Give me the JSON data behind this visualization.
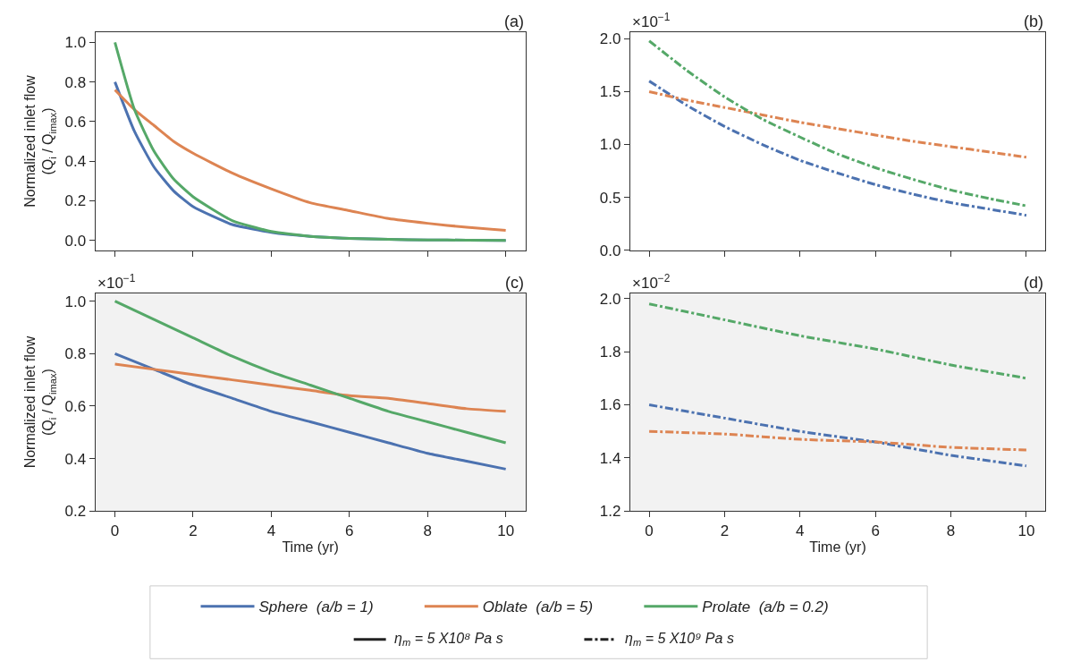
{
  "chart_data": [
    {
      "type": "line",
      "title": "(a)",
      "ylabel": "Normalized inlet flow\n(Q$_{i}$ / Q$_{imax}$)",
      "x": [
        0,
        0.5,
        1,
        1.5,
        2,
        3,
        4,
        5,
        6,
        7,
        8,
        9,
        10
      ],
      "xlim": [
        -0.5,
        10.5
      ],
      "xticks": [
        0,
        2,
        4,
        6,
        8,
        10
      ],
      "ylim": [
        -0.05,
        1.05
      ],
      "yticks": [
        {
          "value": 0,
          "label": "0.0"
        },
        0.2,
        0.4,
        0.6,
        0.8,
        {
          "value": 1,
          "label": "1.0"
        }
      ],
      "tick_labels": "y",
      "grid": false,
      "marker": "none",
      "line_style": "solid",
      "legend": "bottom",
      "annotations": [
        "η$_{m}$ = 5 X10⁸ Pa s",
        "η$_{m}$ = 5 X10⁹ Pa s"
      ],
      "series": [
        {
          "name": "Sphere  (a/b = 1)",
          "color": "#4c72b0",
          "values": [
            0.8,
            0.55,
            0.37,
            0.25,
            0.17,
            0.08,
            0.04,
            0.02,
            0.01,
            0.005,
            0.002,
            0.001,
            0.0
          ]
        },
        {
          "name": "Oblate  (a/b = 5)",
          "color": "#dd8452",
          "values": [
            0.76,
            0.66,
            0.58,
            0.5,
            0.44,
            0.34,
            0.26,
            0.19,
            0.15,
            0.11,
            0.086,
            0.066,
            0.05
          ]
        },
        {
          "name": "Prolate  (a/b = 0.2)",
          "color": "#55a868",
          "values": [
            1.0,
            0.66,
            0.45,
            0.31,
            0.22,
            0.1,
            0.045,
            0.02,
            0.01,
            0.005,
            0.002,
            0.001,
            0.0
          ]
        }
      ]
    },
    {
      "type": "line",
      "title": "(b)",
      "x": [
        0,
        1,
        2,
        3,
        4,
        5,
        6,
        7,
        8,
        9,
        10
      ],
      "xlim": [
        -0.5,
        10.5
      ],
      "xticks": [
        0,
        2,
        4,
        6,
        8,
        10
      ],
      "ylim": [
        0,
        2.06
      ],
      "yticks": [
        {
          "value": 0,
          "label": "0.0"
        },
        0.5,
        {
          "value": 1,
          "label": "1.0"
        },
        1.5,
        {
          "value": 2,
          "label": "2.0"
        }
      ],
      "tick_labels": "y",
      "grid": false,
      "marker": "none",
      "line_style": "dashdot",
      "annotations": [
        "×10$^{−1}$"
      ],
      "series": [
        {
          "color": "#4c72b0",
          "values": [
            1.6,
            1.37,
            1.17,
            1.0,
            0.85,
            0.73,
            0.62,
            0.53,
            0.45,
            0.39,
            0.33
          ]
        },
        {
          "color": "#dd8452",
          "values": [
            1.5,
            1.42,
            1.35,
            1.28,
            1.21,
            1.15,
            1.09,
            1.03,
            0.98,
            0.93,
            0.88
          ]
        },
        {
          "color": "#55a868",
          "values": [
            1.98,
            1.7,
            1.45,
            1.24,
            1.07,
            0.91,
            0.78,
            0.67,
            0.57,
            0.49,
            0.42
          ]
        }
      ]
    },
    {
      "type": "line",
      "title": "(c)",
      "xlabel": "Time (yr)",
      "ylabel": "Normalized inlet flow\n(Q$_{i}$ / Q$_{imax}$)",
      "x": [
        0,
        1,
        2,
        3,
        4,
        5,
        6,
        7,
        8,
        9,
        10
      ],
      "xlim": [
        -0.5,
        10.5
      ],
      "xticks": [
        0,
        2,
        4,
        6,
        8,
        10
      ],
      "ylim": [
        0.2,
        1.03
      ],
      "yticks": [
        0.2,
        0.4,
        0.6,
        0.8,
        {
          "value": 1,
          "label": "1.0"
        }
      ],
      "grid": false,
      "marker": "none",
      "line_style": "solid",
      "annotations": [
        "×10$^{−1}$"
      ],
      "series": [
        {
          "color": "#4c72b0",
          "values": [
            0.8,
            0.74,
            0.68,
            0.63,
            0.58,
            0.54,
            0.5,
            0.46,
            0.42,
            0.39,
            0.36
          ]
        },
        {
          "color": "#dd8452",
          "values": [
            0.76,
            0.74,
            0.72,
            0.7,
            0.68,
            0.66,
            0.64,
            0.63,
            0.61,
            0.59,
            0.58
          ]
        },
        {
          "color": "#55a868",
          "values": [
            1.0,
            0.93,
            0.86,
            0.79,
            0.73,
            0.68,
            0.63,
            0.58,
            0.54,
            0.5,
            0.46
          ]
        }
      ]
    },
    {
      "type": "line",
      "title": "(d)",
      "xlabel": "Time (yr)",
      "x": [
        0,
        2,
        4,
        6,
        8,
        10
      ],
      "xlim": [
        -0.5,
        10.5
      ],
      "xticks": [
        0,
        2,
        4,
        6,
        8,
        10
      ],
      "ylim": [
        1.2,
        2.02
      ],
      "yticks": [
        1.2,
        1.4,
        1.6,
        1.8,
        {
          "value": 2,
          "label": "2.0"
        }
      ],
      "grid": false,
      "marker": "none",
      "line_style": "dashdot",
      "annotations": [
        "×10$^{−2}$"
      ],
      "series": [
        {
          "color": "#4c72b0",
          "values": [
            1.6,
            1.55,
            1.5,
            1.46,
            1.41,
            1.37
          ]
        },
        {
          "color": "#dd8452",
          "values": [
            1.5,
            1.49,
            1.47,
            1.46,
            1.44,
            1.43
          ]
        },
        {
          "color": "#55a868",
          "values": [
            1.98,
            1.92,
            1.86,
            1.81,
            1.75,
            1.7
          ]
        }
      ]
    }
  ]
}
